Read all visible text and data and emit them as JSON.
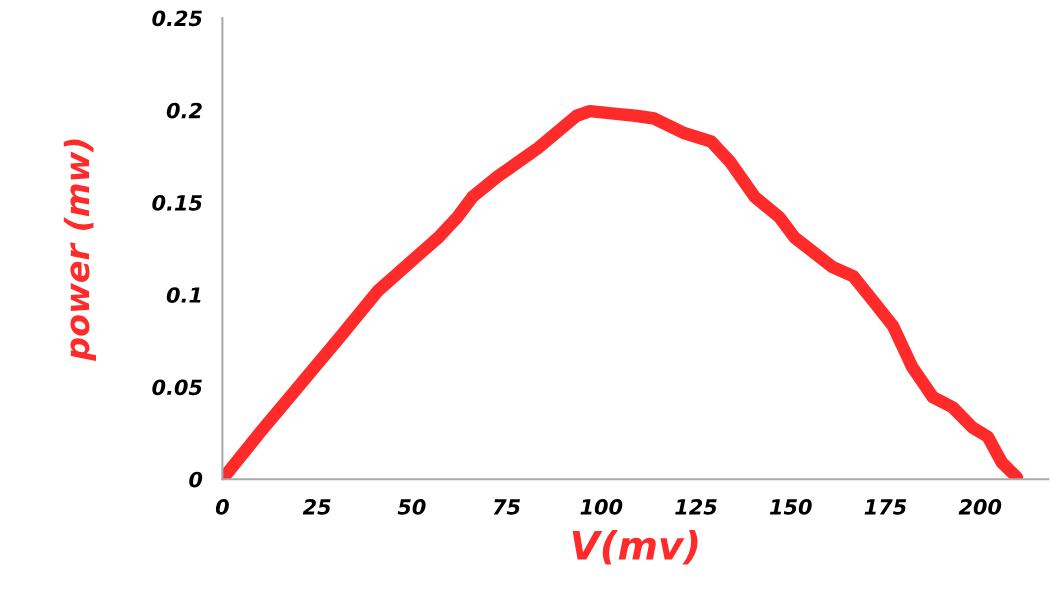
{
  "chart_data": {
    "type": "line",
    "xlabel": "V(mv)",
    "ylabel": "power (mw)",
    "x": [
      0,
      10,
      20,
      31,
      41,
      52,
      57,
      62,
      66,
      72.6,
      83,
      93.5,
      97,
      104,
      109,
      114,
      122,
      129,
      134,
      140.5,
      147,
      151,
      156,
      161,
      166.5,
      172,
      177,
      182,
      187.5,
      192.7,
      198,
      202,
      205.7,
      209.7
    ],
    "series": [
      {
        "color": "#ff2a2a",
        "values": [
          0,
          0.0255,
          0.05,
          0.077,
          0.102,
          0.122,
          0.131,
          0.142,
          0.153,
          0.164,
          0.179,
          0.197,
          0.1995,
          0.198,
          0.197,
          0.1955,
          0.1875,
          0.183,
          0.172,
          0.153,
          0.142,
          0.131,
          0.123,
          0.115,
          0.11,
          0.096,
          0.083,
          0.061,
          0.0445,
          0.039,
          0.028,
          0.023,
          0.009,
          0.001
        ]
      }
    ],
    "xlim": [
      0,
      218
    ],
    "xticks": [
      0,
      25,
      50,
      75,
      100,
      125,
      150,
      175,
      200
    ],
    "ylim": [
      0,
      0.25
    ],
    "yticks": [
      0,
      0.05,
      0.1,
      0.15,
      0.2,
      0.25
    ],
    "grid": false,
    "legend": false,
    "line_style": "solid"
  }
}
